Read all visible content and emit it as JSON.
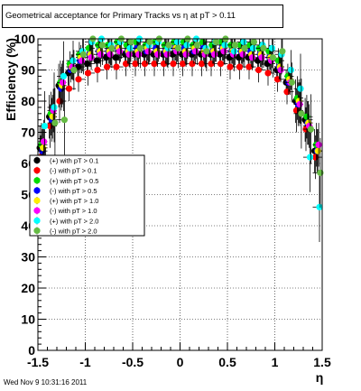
{
  "footer": {
    "timestamp": "Wed Nov  9 10:31:16 2011"
  },
  "chart_data": {
    "type": "scatter",
    "title": "Geometrical acceptance for Primary Tracks vs   η at pT > 0.11",
    "xlabel": "η",
    "ylabel": "Efficiency (%)",
    "xlim": [
      -1.5,
      1.5
    ],
    "ylim": [
      0,
      100
    ],
    "x_ticks": [
      "-1.5",
      "-1",
      "-0.5",
      "0",
      "0.5",
      "1",
      "1.5"
    ],
    "y_ticks": [
      "0",
      "10",
      "20",
      "30",
      "40",
      "50",
      "60",
      "70",
      "80",
      "90",
      "100"
    ],
    "grid": true,
    "legend_position": "middle-left",
    "series": [
      {
        "name": "(+) with pT > 0.1",
        "color": "#000000",
        "x": [
          -1.45,
          -1.35,
          -1.25,
          -1.15,
          -1.05,
          -0.95,
          -0.85,
          -0.75,
          -0.65,
          -0.55,
          -0.45,
          -0.35,
          -0.25,
          -0.15,
          -0.05,
          0.05,
          0.15,
          0.25,
          0.35,
          0.45,
          0.55,
          0.65,
          0.75,
          0.85,
          0.95,
          1.05,
          1.15,
          1.25,
          1.35,
          1.45
        ],
        "y": [
          65,
          75,
          85,
          89,
          91,
          92,
          93,
          94,
          94,
          95,
          95,
          95,
          95,
          95,
          95,
          95,
          95,
          95,
          95,
          95,
          94,
          94,
          94,
          93,
          92,
          90,
          86,
          80,
          74,
          64
        ]
      },
      {
        "name": "(-) with pT > 0.1",
        "color": "#ff0000",
        "x": [
          -1.45,
          -1.35,
          -1.25,
          -1.15,
          -1.05,
          -0.95,
          -0.85,
          -0.75,
          -0.65,
          -0.55,
          -0.45,
          -0.35,
          -0.25,
          -0.15,
          -0.05,
          0.05,
          0.15,
          0.25,
          0.35,
          0.45,
          0.55,
          0.65,
          0.75,
          0.85,
          0.95,
          1.05,
          1.15,
          1.25,
          1.35,
          1.45
        ],
        "y": [
          62,
          72,
          80,
          84,
          87,
          89,
          90,
          91,
          91,
          92,
          92,
          92,
          92,
          92,
          92,
          92,
          92,
          92,
          92,
          92,
          91,
          91,
          91,
          90,
          89,
          87,
          83,
          77,
          71,
          62
        ]
      },
      {
        "name": "(+) with pT > 0.5",
        "color": "#00dd00",
        "x": [
          -1.45,
          -1.35,
          -1.25,
          -1.15,
          -1.05,
          -0.95,
          -0.85,
          -0.75,
          -0.65,
          -0.55,
          -0.45,
          -0.35,
          -0.25,
          -0.15,
          -0.05,
          0.05,
          0.15,
          0.25,
          0.35,
          0.45,
          0.55,
          0.65,
          0.75,
          0.85,
          0.95,
          1.05,
          1.15,
          1.25,
          1.35,
          1.45
        ],
        "y": [
          66,
          76,
          86,
          92,
          95,
          97,
          98,
          98,
          99,
          98,
          99,
          98,
          99,
          98,
          99,
          99,
          98,
          99,
          98,
          99,
          98,
          98,
          98,
          97,
          96,
          93,
          88,
          81,
          75,
          66
        ]
      },
      {
        "name": "(-) with pT > 0.5",
        "color": "#0000ff",
        "x": [
          -1.45,
          -1.35,
          -1.25,
          -1.15,
          -1.05,
          -0.95,
          -0.85,
          -0.75,
          -0.65,
          -0.55,
          -0.45,
          -0.35,
          -0.25,
          -0.15,
          -0.05,
          0.05,
          0.15,
          0.25,
          0.35,
          0.45,
          0.55,
          0.65,
          0.75,
          0.85,
          0.95,
          1.05,
          1.15,
          1.25,
          1.35,
          1.45
        ],
        "y": [
          64,
          74,
          84,
          90,
          93,
          95,
          96,
          96,
          97,
          96,
          97,
          96,
          97,
          96,
          97,
          97,
          96,
          97,
          96,
          97,
          96,
          96,
          96,
          95,
          94,
          91,
          86,
          79,
          73,
          64
        ]
      },
      {
        "name": "(+) with pT > 1.0",
        "color": "#ffee00",
        "x": [
          -1.45,
          -1.35,
          -1.25,
          -1.15,
          -1.05,
          -0.95,
          -0.85,
          -0.75,
          -0.65,
          -0.55,
          -0.45,
          -0.35,
          -0.25,
          -0.15,
          -0.05,
          0.05,
          0.15,
          0.25,
          0.35,
          0.45,
          0.55,
          0.65,
          0.75,
          0.85,
          0.95,
          1.05,
          1.15,
          1.25,
          1.35,
          1.45
        ],
        "y": [
          65,
          75,
          85,
          91,
          94,
          95,
          96,
          96,
          97,
          96,
          96,
          97,
          96,
          96,
          97,
          96,
          97,
          96,
          96,
          97,
          96,
          96,
          95,
          95,
          94,
          91,
          87,
          80,
          73,
          64
        ]
      },
      {
        "name": "(-) with pT > 1.0",
        "color": "#ff00ff",
        "x": [
          -1.45,
          -1.35,
          -1.25,
          -1.15,
          -1.05,
          -0.95,
          -0.85,
          -0.75,
          -0.65,
          -0.55,
          -0.45,
          -0.35,
          -0.25,
          -0.15,
          -0.05,
          0.05,
          0.15,
          0.25,
          0.35,
          0.45,
          0.55,
          0.65,
          0.75,
          0.85,
          0.95,
          1.05,
          1.15,
          1.25,
          1.35,
          1.45
        ],
        "y": [
          67,
          77,
          86,
          91,
          93,
          94,
          95,
          95,
          96,
          95,
          95,
          96,
          95,
          95,
          96,
          95,
          96,
          95,
          95,
          96,
          95,
          95,
          94,
          94,
          93,
          90,
          86,
          79,
          72,
          66
        ]
      },
      {
        "name": "(+) with pT > 2.0",
        "color": "#00ffff",
        "x": [
          -1.45,
          -1.35,
          -1.25,
          -1.15,
          -1.05,
          -0.95,
          -0.85,
          -0.75,
          -0.65,
          -0.55,
          -0.45,
          -0.35,
          -0.25,
          -0.15,
          -0.05,
          0.05,
          0.15,
          0.25,
          0.35,
          0.45,
          0.55,
          0.65,
          0.75,
          0.85,
          0.95,
          1.05,
          1.15,
          1.25,
          1.35,
          1.45
        ],
        "y": [
          72,
          78,
          88,
          93,
          96,
          99,
          100,
          98,
          99,
          97,
          100,
          98,
          99,
          97,
          99,
          98,
          100,
          97,
          99,
          98,
          96,
          99,
          97,
          98,
          97,
          95,
          90,
          84,
          62,
          46
        ]
      },
      {
        "name": "(-) with pT > 2.0",
        "color": "#66bb44",
        "x": [
          -1.45,
          -1.35,
          -1.25,
          -1.15,
          -1.05,
          -0.95,
          -0.85,
          -0.75,
          -0.65,
          -0.55,
          -0.45,
          -0.35,
          -0.25,
          -0.15,
          -0.05,
          0.05,
          0.15,
          0.25,
          0.35,
          0.45,
          0.55,
          0.65,
          0.75,
          0.85,
          0.95,
          1.05,
          1.15,
          1.25,
          1.35,
          1.45
        ],
        "y": [
          54,
          73,
          74,
          90,
          95,
          100,
          98,
          97,
          100,
          99,
          97,
          99,
          100,
          98,
          97,
          100,
          98,
          96,
          99,
          100,
          98,
          97,
          99,
          97,
          94,
          96,
          86,
          76,
          71,
          57
        ]
      }
    ]
  }
}
